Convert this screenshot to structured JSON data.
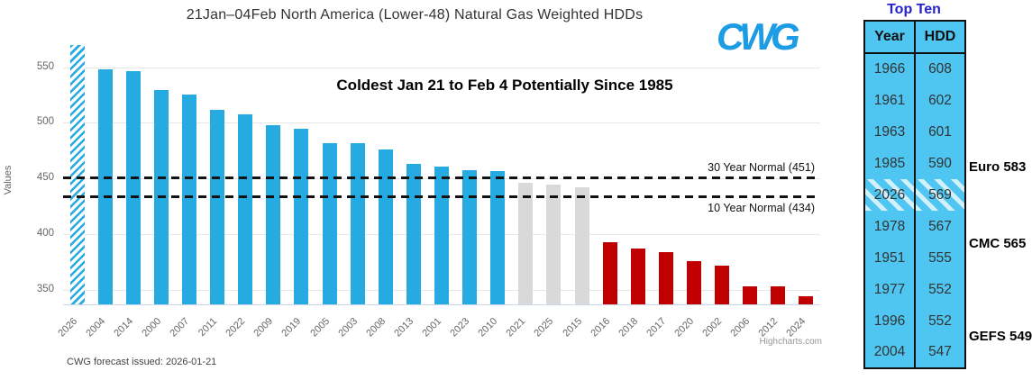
{
  "chart": {
    "title": "21Jan–04Feb North America (Lower-48) Natural Gas Weighted HDDs",
    "logo_text": "CWG",
    "annotation": "Coldest Jan 21 to Feb 4 Potentially Since 1985",
    "footer": "CWG forecast issued: 2026-01-21",
    "credit": "Highcharts.com"
  },
  "chart_data": {
    "type": "bar",
    "title": "21Jan–04Feb North America (Lower-48) Natural Gas Weighted HDDs",
    "ylabel": "Values",
    "xlabel": "",
    "ylim": [
      336,
      574
    ],
    "yticks": [
      350,
      400,
      450,
      500,
      550
    ],
    "grid": true,
    "legend": "none",
    "categories": [
      "2026",
      "2004",
      "2014",
      "2000",
      "2007",
      "2011",
      "2022",
      "2009",
      "2019",
      "2005",
      "2003",
      "2008",
      "2013",
      "2001",
      "2023",
      "2010",
      "2021",
      "2025",
      "2015",
      "2016",
      "2018",
      "2017",
      "2020",
      "2002",
      "2006",
      "2012",
      "2024"
    ],
    "values": [
      569,
      547,
      546,
      529,
      525,
      511,
      507,
      497,
      494,
      481,
      481,
      475,
      462,
      460,
      457,
      456,
      445,
      444,
      441,
      392,
      386,
      383,
      375,
      371,
      352,
      352,
      343
    ],
    "bar_styles": [
      "hatched",
      "blue",
      "blue",
      "blue",
      "blue",
      "blue",
      "blue",
      "blue",
      "blue",
      "blue",
      "blue",
      "blue",
      "blue",
      "blue",
      "blue",
      "blue",
      "gray",
      "gray",
      "gray",
      "red",
      "red",
      "red",
      "red",
      "red",
      "red",
      "red",
      "red"
    ],
    "colors": {
      "blue": "#25AAE1",
      "gray": "#D9D9D9",
      "red": "#C00000",
      "hatch": "#25AAE1",
      "grid": "#E6E6E6"
    },
    "reference_lines": [
      {
        "label": "30 Year Normal (451)",
        "value": 451,
        "label_position": "above"
      },
      {
        "label": "10 Year Normal (434)",
        "value": 434,
        "label_position": "below"
      }
    ]
  },
  "top_ten": {
    "title": "Top Ten",
    "columns": [
      "Year",
      "HDD"
    ],
    "rows": [
      [
        "1966",
        "608"
      ],
      [
        "1961",
        "602"
      ],
      [
        "1963",
        "601"
      ],
      [
        "1985",
        "590"
      ],
      [
        "2026",
        "569"
      ],
      [
        "1978",
        "567"
      ],
      [
        "1951",
        "555"
      ],
      [
        "1977",
        "552"
      ],
      [
        "1996",
        "552"
      ],
      [
        "2004",
        "547"
      ]
    ],
    "highlight_year": "2026",
    "annotations": [
      {
        "label": "Euro 583",
        "after_row": 4
      },
      {
        "label": "CMC 565",
        "after_row": 6
      },
      {
        "label": "GEFS 549",
        "after_row": 9
      }
    ]
  }
}
